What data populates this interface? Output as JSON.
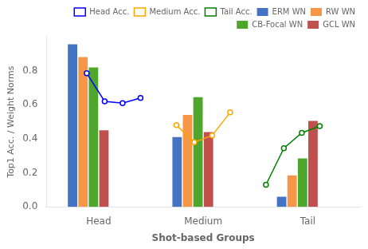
{
  "chart_data": {
    "type": "bar",
    "xlabel": "Shot-based Groups",
    "ylabel": "Top1 Acc. / Weight Norms",
    "categories": [
      "Head",
      "Medium",
      "Tail"
    ],
    "series": [
      {
        "name": "Head Acc.",
        "type": "line",
        "marker": "circle",
        "color": "#0000ff",
        "values": [
          [
            0.785,
            0.62,
            0.61,
            0.64
          ],
          null,
          null
        ]
      },
      {
        "name": "Medium Acc.",
        "type": "line",
        "marker": "circle",
        "color": "#ffa500",
        "values": [
          null,
          [
            0.48,
            0.38,
            0.42,
            0.555
          ],
          null
        ]
      },
      {
        "name": "Tail Acc.",
        "type": "line",
        "marker": "circle",
        "color": "#008000",
        "values": [
          null,
          null,
          [
            0.13,
            0.345,
            0.435,
            0.475
          ]
        ]
      },
      {
        "name": "ERM WN",
        "type": "bar",
        "color": "#4472c4",
        "values": [
          0.955,
          0.41,
          0.06
        ]
      },
      {
        "name": "RW WN",
        "type": "bar",
        "color": "#f79646",
        "values": [
          0.88,
          0.54,
          0.185
        ]
      },
      {
        "name": "CB-Focal WN",
        "type": "bar",
        "color": "#4ea72c",
        "values": [
          0.82,
          0.645,
          0.285
        ]
      },
      {
        "name": "GCL WN",
        "type": "bar",
        "color": "#c0504d",
        "values": [
          0.45,
          0.44,
          0.505
        ]
      }
    ],
    "ylim": [
      0.0,
      1.0
    ],
    "yticks": [
      {
        "value": 0.0,
        "label": "0.0"
      },
      0.2,
      0.4,
      0.6,
      0.8
    ],
    "grid": false,
    "legend": "upper right"
  }
}
